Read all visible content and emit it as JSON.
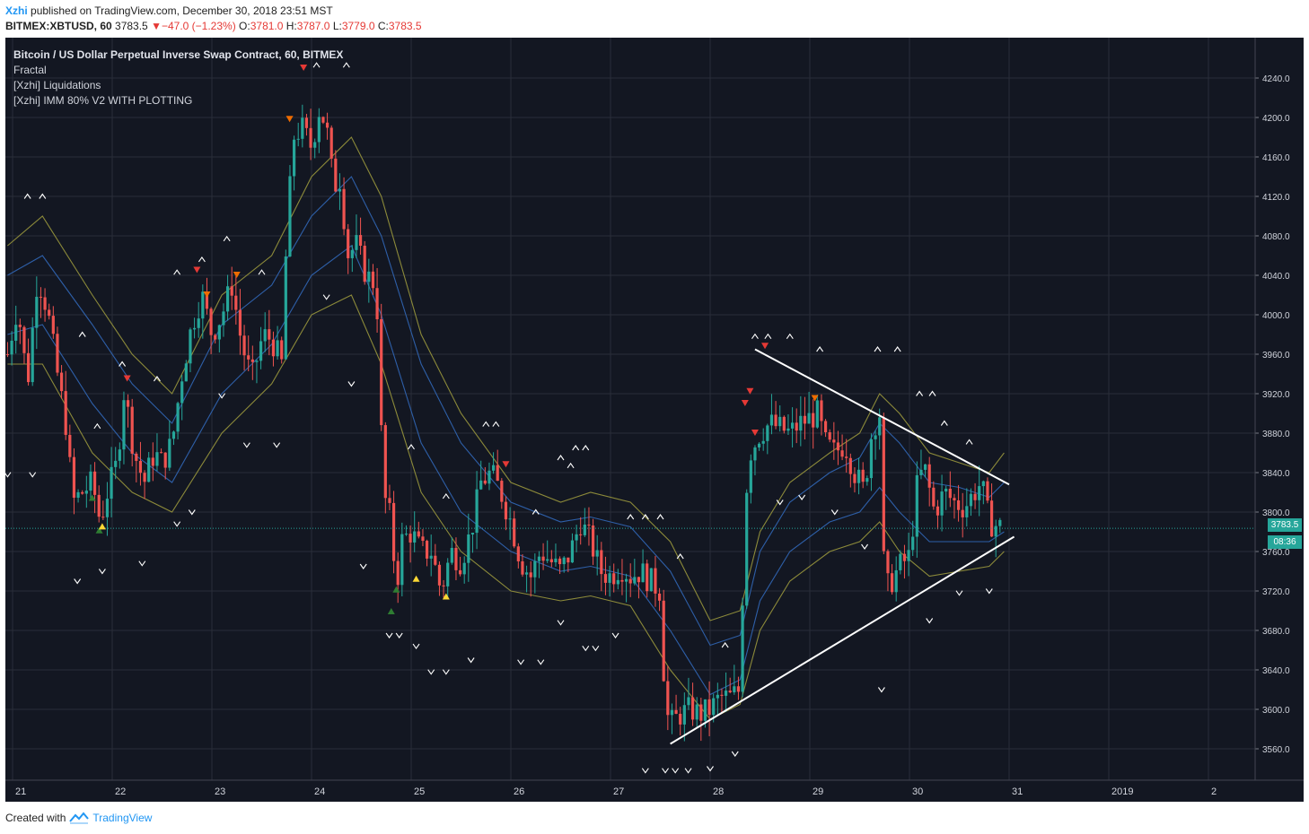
{
  "header": {
    "user": "Xzhi",
    "published": "published on TradingView.com, December 30, 2018 23:51 MST",
    "symbol": "BITMEX:XBTUSD, 60",
    "last": "3783.5",
    "change_arrow": "▼",
    "change": "−47.0 (−1.23%)",
    "o_label": "O:",
    "o_value": "3781.0",
    "h_label": "H:",
    "h_value": "3787.0",
    "l_label": "L:",
    "l_value": "3779.0",
    "c_label": "C:",
    "c_value": "3783.5"
  },
  "legend": {
    "title": "Bitcoin / US Dollar Perpetual Inverse Swap Contract, 60, BITMEX",
    "items": [
      "Fractal",
      "[Xzhi] Liquidations",
      "[Xzhi] IMM 80% V2 WITH PLOTTING"
    ]
  },
  "footer": {
    "created_with": "Created with",
    "brand": "TradingView",
    "logo_icon": "tradingview-logo-icon"
  },
  "price_tags": {
    "last_price": "3783.5",
    "countdown": "08:36"
  },
  "colors": {
    "background": "#131722",
    "up": "#26a69a",
    "down": "#ef5350",
    "band_olive": "#8c8a3a",
    "band_blue": "#2e5fa8",
    "trendline": "#ffffff"
  },
  "chart_data": {
    "type": "candlestick",
    "title": "Bitcoin / US Dollar Perpetual Inverse Swap Contract, 60, BITMEX",
    "x_tick_labels": [
      "21",
      "22",
      "23",
      "24",
      "25",
      "26",
      "27",
      "28",
      "29",
      "30",
      "31",
      "2019",
      "2"
    ],
    "y_tick_labels": [
      "3560.0",
      "3600.0",
      "3640.0",
      "3680.0",
      "3720.0",
      "3760.0",
      "3800.0",
      "3840.0",
      "3880.0",
      "3920.0",
      "3960.0",
      "4000.0",
      "4040.0",
      "4080.0",
      "4120.0",
      "4160.0",
      "4200.0",
      "4240.0"
    ],
    "ylim": [
      3528,
      4268
    ],
    "xlim_days": [
      20.95,
      33.5
    ],
    "last_price": 3783.5,
    "grid": true,
    "close_path": [
      [
        20.95,
        3960
      ],
      [
        21.05,
        4010
      ],
      [
        21.15,
        3930
      ],
      [
        21.25,
        4040
      ],
      [
        21.35,
        4005
      ],
      [
        21.45,
        3940
      ],
      [
        21.55,
        3880
      ],
      [
        21.6,
        3810
      ],
      [
        21.7,
        3820
      ],
      [
        21.8,
        3830
      ],
      [
        21.88,
        3790
      ],
      [
        21.95,
        3820
      ],
      [
        22.05,
        3850
      ],
      [
        22.12,
        3925
      ],
      [
        22.22,
        3860
      ],
      [
        22.32,
        3830
      ],
      [
        22.42,
        3860
      ],
      [
        22.5,
        3850
      ],
      [
        22.6,
        3870
      ],
      [
        22.7,
        3940
      ],
      [
        22.8,
        3990
      ],
      [
        22.9,
        4020
      ],
      [
        23.0,
        3980
      ],
      [
        23.1,
        4000
      ],
      [
        23.2,
        4030
      ],
      [
        23.3,
        3970
      ],
      [
        23.4,
        3935
      ],
      [
        23.5,
        3975
      ],
      [
        23.55,
        3980
      ],
      [
        23.62,
        3970
      ],
      [
        23.7,
        3950
      ],
      [
        23.75,
        4080
      ],
      [
        23.82,
        4180
      ],
      [
        23.9,
        4190
      ],
      [
        24.0,
        4170
      ],
      [
        24.08,
        4210
      ],
      [
        24.15,
        4190
      ],
      [
        24.22,
        4130
      ],
      [
        24.3,
        4140
      ],
      [
        24.35,
        4060
      ],
      [
        24.45,
        4070
      ],
      [
        24.55,
        4040
      ],
      [
        24.65,
        4030
      ],
      [
        24.72,
        3820
      ],
      [
        24.8,
        3790
      ],
      [
        24.85,
        3720
      ],
      [
        24.9,
        3770
      ],
      [
        25.0,
        3780
      ],
      [
        25.1,
        3760
      ],
      [
        25.2,
        3760
      ],
      [
        25.3,
        3720
      ],
      [
        25.4,
        3760
      ],
      [
        25.5,
        3750
      ],
      [
        25.6,
        3780
      ],
      [
        25.7,
        3830
      ],
      [
        25.8,
        3840
      ],
      [
        25.9,
        3820
      ],
      [
        26.0,
        3790
      ],
      [
        26.1,
        3750
      ],
      [
        26.2,
        3735
      ],
      [
        26.3,
        3760
      ],
      [
        26.4,
        3750
      ],
      [
        26.5,
        3740
      ],
      [
        26.6,
        3760
      ],
      [
        26.7,
        3790
      ],
      [
        26.8,
        3770
      ],
      [
        26.9,
        3740
      ],
      [
        27.0,
        3735
      ],
      [
        27.1,
        3745
      ],
      [
        27.2,
        3735
      ],
      [
        27.3,
        3740
      ],
      [
        27.4,
        3730
      ],
      [
        27.5,
        3720
      ],
      [
        27.55,
        3600
      ],
      [
        27.6,
        3585
      ],
      [
        27.7,
        3595
      ],
      [
        27.8,
        3600
      ],
      [
        27.9,
        3595
      ],
      [
        28.0,
        3600
      ],
      [
        28.1,
        3612
      ],
      [
        28.2,
        3612
      ],
      [
        28.3,
        3620
      ],
      [
        28.35,
        3810
      ],
      [
        28.4,
        3860
      ],
      [
        28.5,
        3880
      ],
      [
        28.6,
        3890
      ],
      [
        28.7,
        3885
      ],
      [
        28.8,
        3880
      ],
      [
        28.9,
        3890
      ],
      [
        29.0,
        3895
      ],
      [
        29.08,
        3900
      ],
      [
        29.15,
        3870
      ],
      [
        29.25,
        3860
      ],
      [
        29.35,
        3870
      ],
      [
        29.45,
        3840
      ],
      [
        29.55,
        3820
      ],
      [
        29.6,
        3870
      ],
      [
        29.65,
        3890
      ],
      [
        29.7,
        3900
      ],
      [
        29.75,
        3720
      ],
      [
        29.82,
        3730
      ],
      [
        29.9,
        3745
      ],
      [
        30.0,
        3755
      ],
      [
        30.08,
        3830
      ],
      [
        30.15,
        3845
      ],
      [
        30.25,
        3800
      ],
      [
        30.35,
        3820
      ],
      [
        30.45,
        3810
      ],
      [
        30.55,
        3805
      ],
      [
        30.65,
        3820
      ],
      [
        30.72,
        3830
      ],
      [
        30.8,
        3790
      ],
      [
        30.9,
        3785
      ],
      [
        30.95,
        3783.5
      ]
    ],
    "bands": {
      "olive_upper": [
        [
          20.95,
          4070
        ],
        [
          21.3,
          4100
        ],
        [
          21.8,
          4020
        ],
        [
          22.2,
          3960
        ],
        [
          22.6,
          3920
        ],
        [
          23.1,
          4020
        ],
        [
          23.6,
          4060
        ],
        [
          24.0,
          4140
        ],
        [
          24.4,
          4180
        ],
        [
          24.7,
          4120
        ],
        [
          25.1,
          3980
        ],
        [
          25.5,
          3900
        ],
        [
          26.0,
          3830
        ],
        [
          26.5,
          3810
        ],
        [
          26.8,
          3820
        ],
        [
          27.2,
          3810
        ],
        [
          27.6,
          3770
        ],
        [
          28.0,
          3690
        ],
        [
          28.3,
          3700
        ],
        [
          28.5,
          3780
        ],
        [
          28.8,
          3830
        ],
        [
          29.2,
          3860
        ],
        [
          29.5,
          3880
        ],
        [
          29.7,
          3920
        ],
        [
          29.9,
          3900
        ],
        [
          30.2,
          3860
        ],
        [
          30.5,
          3850
        ],
        [
          30.8,
          3840
        ],
        [
          30.95,
          3860
        ]
      ],
      "blue_upper": [
        [
          20.95,
          4040
        ],
        [
          21.3,
          4060
        ],
        [
          21.8,
          3990
        ],
        [
          22.2,
          3930
        ],
        [
          22.6,
          3890
        ],
        [
          23.1,
          3990
        ],
        [
          23.6,
          4030
        ],
        [
          24.0,
          4100
        ],
        [
          24.4,
          4140
        ],
        [
          24.7,
          4080
        ],
        [
          25.1,
          3950
        ],
        [
          25.5,
          3870
        ],
        [
          26.0,
          3810
        ],
        [
          26.5,
          3790
        ],
        [
          26.8,
          3795
        ],
        [
          27.2,
          3785
        ],
        [
          27.6,
          3740
        ],
        [
          28.0,
          3665
        ],
        [
          28.3,
          3675
        ],
        [
          28.5,
          3760
        ],
        [
          28.8,
          3810
        ],
        [
          29.2,
          3840
        ],
        [
          29.5,
          3855
        ],
        [
          29.7,
          3890
        ],
        [
          29.9,
          3870
        ],
        [
          30.2,
          3830
        ],
        [
          30.5,
          3825
        ],
        [
          30.8,
          3815
        ],
        [
          30.95,
          3830
        ]
      ],
      "blue_lower": [
        [
          20.95,
          3980
        ],
        [
          21.3,
          3990
        ],
        [
          21.8,
          3910
        ],
        [
          22.2,
          3860
        ],
        [
          22.6,
          3830
        ],
        [
          23.1,
          3920
        ],
        [
          23.6,
          3970
        ],
        [
          24.0,
          4040
        ],
        [
          24.4,
          4070
        ],
        [
          24.7,
          4000
        ],
        [
          25.1,
          3870
        ],
        [
          25.5,
          3800
        ],
        [
          26.0,
          3760
        ],
        [
          26.5,
          3740
        ],
        [
          26.8,
          3745
        ],
        [
          27.2,
          3735
        ],
        [
          27.6,
          3680
        ],
        [
          28.0,
          3615
        ],
        [
          28.3,
          3630
        ],
        [
          28.5,
          3710
        ],
        [
          28.8,
          3760
        ],
        [
          29.2,
          3790
        ],
        [
          29.5,
          3800
        ],
        [
          29.7,
          3825
        ],
        [
          29.9,
          3800
        ],
        [
          30.2,
          3770
        ],
        [
          30.5,
          3770
        ],
        [
          30.8,
          3770
        ],
        [
          30.95,
          3780
        ]
      ],
      "olive_lower": [
        [
          20.95,
          3950
        ],
        [
          21.3,
          3950
        ],
        [
          21.8,
          3860
        ],
        [
          22.2,
          3820
        ],
        [
          22.6,
          3800
        ],
        [
          23.1,
          3880
        ],
        [
          23.6,
          3930
        ],
        [
          24.0,
          4000
        ],
        [
          24.4,
          4020
        ],
        [
          24.7,
          3950
        ],
        [
          25.1,
          3820
        ],
        [
          25.5,
          3760
        ],
        [
          26.0,
          3720
        ],
        [
          26.5,
          3710
        ],
        [
          26.8,
          3715
        ],
        [
          27.2,
          3705
        ],
        [
          27.6,
          3640
        ],
        [
          28.0,
          3590
        ],
        [
          28.3,
          3605
        ],
        [
          28.5,
          3680
        ],
        [
          28.8,
          3730
        ],
        [
          29.2,
          3760
        ],
        [
          29.5,
          3770
        ],
        [
          29.7,
          3790
        ],
        [
          29.9,
          3760
        ],
        [
          30.2,
          3735
        ],
        [
          30.5,
          3740
        ],
        [
          30.8,
          3745
        ],
        [
          30.95,
          3760
        ]
      ]
    },
    "trendlines": [
      {
        "from": [
          28.45,
          3965
        ],
        "to": [
          31.0,
          3828
        ]
      },
      {
        "from": [
          27.6,
          3565
        ],
        "to": [
          31.05,
          3775
        ]
      }
    ],
    "signals": [
      {
        "x": 22.15,
        "y": 3935,
        "kind": "down",
        "color": "#e53935"
      },
      {
        "x": 22.85,
        "y": 4045,
        "kind": "down",
        "color": "#e53935"
      },
      {
        "x": 22.95,
        "y": 4020,
        "kind": "down",
        "color": "#ef6c00"
      },
      {
        "x": 23.25,
        "y": 4040,
        "kind": "down",
        "color": "#ef6c00"
      },
      {
        "x": 23.78,
        "y": 4198,
        "kind": "down",
        "color": "#ef6c00"
      },
      {
        "x": 23.92,
        "y": 4250,
        "kind": "down",
        "color": "#e53935"
      },
      {
        "x": 25.95,
        "y": 3848,
        "kind": "down",
        "color": "#e53935"
      },
      {
        "x": 28.35,
        "y": 3910,
        "kind": "down",
        "color": "#e53935"
      },
      {
        "x": 28.4,
        "y": 3922,
        "kind": "down",
        "color": "#e53935"
      },
      {
        "x": 28.55,
        "y": 3968,
        "kind": "down",
        "color": "#e53935"
      },
      {
        "x": 28.45,
        "y": 3880,
        "kind": "down",
        "color": "#e53935"
      },
      {
        "x": 29.05,
        "y": 3915,
        "kind": "down",
        "color": "#ef6c00"
      },
      {
        "x": 21.8,
        "y": 3815,
        "kind": "up",
        "color": "#2e7d32"
      },
      {
        "x": 21.87,
        "y": 3782,
        "kind": "up",
        "color": "#2e7d32"
      },
      {
        "x": 21.9,
        "y": 3786,
        "kind": "up",
        "color": "#fdd835"
      },
      {
        "x": 24.85,
        "y": 3722,
        "kind": "up",
        "color": "#2e7d32"
      },
      {
        "x": 24.8,
        "y": 3700,
        "kind": "up",
        "color": "#2e7d32"
      },
      {
        "x": 25.05,
        "y": 3733,
        "kind": "up",
        "color": "#fdd835"
      },
      {
        "x": 25.35,
        "y": 3715,
        "kind": "up",
        "color": "#fdd835"
      }
    ],
    "fractals_up": [
      [
        21.15,
        4120
      ],
      [
        21.3,
        4120
      ],
      [
        21.7,
        3980
      ],
      [
        21.85,
        3887
      ],
      [
        22.1,
        3950
      ],
      [
        22.45,
        3935
      ],
      [
        22.65,
        4043
      ],
      [
        22.9,
        4056
      ],
      [
        23.15,
        4077
      ],
      [
        23.5,
        4043
      ],
      [
        24.05,
        4253
      ],
      [
        24.35,
        4253
      ],
      [
        25.0,
        3866
      ],
      [
        25.35,
        3816
      ],
      [
        25.75,
        3889
      ],
      [
        25.85,
        3889
      ],
      [
        26.25,
        3800
      ],
      [
        26.5,
        3855
      ],
      [
        26.65,
        3865
      ],
      [
        26.75,
        3865
      ],
      [
        26.6,
        3847
      ],
      [
        27.2,
        3795
      ],
      [
        27.35,
        3795
      ],
      [
        27.5,
        3795
      ],
      [
        27.7,
        3755
      ],
      [
        28.15,
        3665
      ],
      [
        28.45,
        3978
      ],
      [
        28.58,
        3978
      ],
      [
        28.8,
        3978
      ],
      [
        29.1,
        3965
      ],
      [
        29.68,
        3965
      ],
      [
        29.88,
        3965
      ],
      [
        30.1,
        3920
      ],
      [
        30.23,
        3920
      ],
      [
        30.35,
        3890
      ],
      [
        30.6,
        3871
      ]
    ],
    "fractals_down": [
      [
        20.95,
        3838
      ],
      [
        21.2,
        3838
      ],
      [
        21.65,
        3730
      ],
      [
        21.9,
        3740
      ],
      [
        22.3,
        3748
      ],
      [
        22.65,
        3788
      ],
      [
        22.8,
        3800
      ],
      [
        23.1,
        3918
      ],
      [
        23.35,
        3868
      ],
      [
        23.65,
        3868
      ],
      [
        24.15,
        4018
      ],
      [
        24.4,
        3930
      ],
      [
        24.52,
        3745
      ],
      [
        24.78,
        3675
      ],
      [
        24.88,
        3675
      ],
      [
        25.05,
        3664
      ],
      [
        25.2,
        3638
      ],
      [
        25.35,
        3638
      ],
      [
        25.6,
        3650
      ],
      [
        26.1,
        3648
      ],
      [
        26.3,
        3648
      ],
      [
        26.5,
        3688
      ],
      [
        26.75,
        3662
      ],
      [
        26.85,
        3662
      ],
      [
        27.05,
        3675
      ],
      [
        27.35,
        3538
      ],
      [
        27.55,
        3538
      ],
      [
        27.65,
        3538
      ],
      [
        27.78,
        3538
      ],
      [
        28.0,
        3540
      ],
      [
        28.25,
        3555
      ],
      [
        28.7,
        3810
      ],
      [
        28.92,
        3815
      ],
      [
        29.25,
        3800
      ],
      [
        29.55,
        3765
      ],
      [
        29.72,
        3620
      ],
      [
        30.2,
        3690
      ],
      [
        30.5,
        3718
      ],
      [
        30.8,
        3720
      ]
    ]
  }
}
